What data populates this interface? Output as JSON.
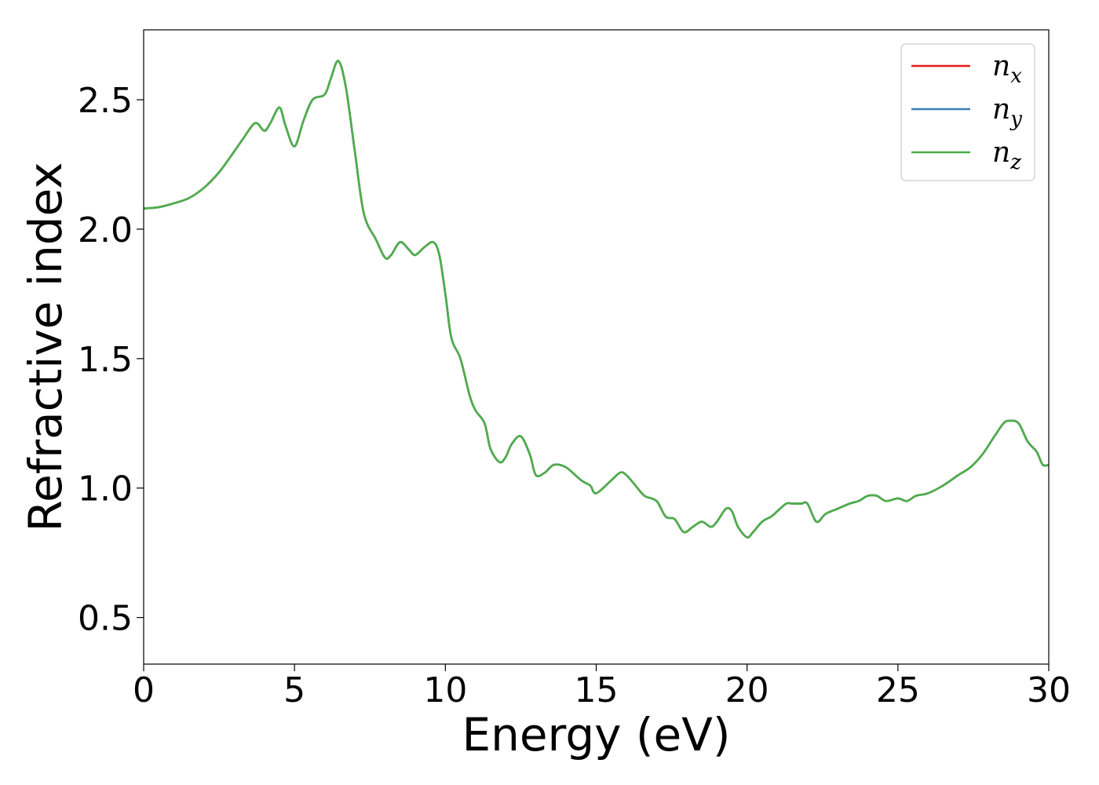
{
  "chart_data": {
    "type": "line",
    "title": "",
    "xlabel": "Energy (eV)",
    "ylabel": "Refractive index",
    "xlim": [
      0,
      30
    ],
    "ylim": [
      0.32,
      2.77
    ],
    "xticks": [
      0,
      5,
      10,
      15,
      20,
      25,
      30
    ],
    "xtick_labels": [
      "0",
      "5",
      "10",
      "15",
      "20",
      "25",
      "30"
    ],
    "yticks": [
      0.5,
      1.0,
      1.5,
      2.0,
      2.5
    ],
    "ytick_labels": [
      "0.5",
      "1.0",
      "1.5",
      "2.0",
      "2.5"
    ],
    "grid": false,
    "legend_position": "top-right",
    "x": [
      0,
      0.5,
      1,
      1.5,
      2,
      2.5,
      3,
      3.3,
      3.7,
      4.0,
      4.2,
      4.5,
      4.7,
      5.0,
      5.3,
      5.6,
      6.0,
      6.2,
      6.45,
      6.7,
      7.0,
      7.3,
      7.7,
      8.0,
      8.2,
      8.5,
      8.8,
      9.0,
      9.3,
      9.6,
      9.8,
      10.0,
      10.2,
      10.5,
      10.8,
      11.0,
      11.3,
      11.5,
      11.8,
      12.0,
      12.2,
      12.5,
      12.8,
      13.0,
      13.3,
      13.6,
      14.0,
      14.5,
      14.8,
      15.0,
      15.5,
      15.8,
      16.0,
      16.3,
      16.6,
      17.0,
      17.3,
      17.6,
      17.9,
      18.2,
      18.5,
      18.8,
      19.0,
      19.3,
      19.5,
      19.7,
      20.0,
      20.2,
      20.5,
      20.8,
      21.0,
      21.3,
      21.5,
      21.8,
      22.0,
      22.3,
      22.6,
      23.0,
      23.4,
      23.7,
      24.0,
      24.3,
      24.6,
      25.0,
      25.3,
      25.6,
      26.0,
      26.5,
      27.0,
      27.4,
      27.8,
      28.2,
      28.5,
      28.7,
      29.0,
      29.3,
      29.6,
      29.8,
      30.0
    ],
    "series": [
      {
        "name": "n_x",
        "label_base": "n",
        "label_sub": "x",
        "color": "#e41a1c"
      },
      {
        "name": "n_y",
        "label_base": "n",
        "label_sub": "y",
        "color": "#377eb8"
      },
      {
        "name": "n_z",
        "label_base": "n",
        "label_sub": "z",
        "color": "#4daf4a"
      }
    ],
    "values": [
      2.08,
      2.085,
      2.1,
      2.12,
      2.16,
      2.22,
      2.3,
      2.35,
      2.41,
      2.38,
      2.41,
      2.47,
      2.4,
      2.32,
      2.42,
      2.5,
      2.52,
      2.58,
      2.65,
      2.55,
      2.3,
      2.06,
      1.96,
      1.89,
      1.9,
      1.95,
      1.92,
      1.9,
      1.93,
      1.95,
      1.9,
      1.75,
      1.58,
      1.5,
      1.36,
      1.3,
      1.25,
      1.15,
      1.1,
      1.12,
      1.17,
      1.2,
      1.13,
      1.05,
      1.06,
      1.09,
      1.08,
      1.03,
      1.01,
      0.98,
      1.03,
      1.06,
      1.05,
      1.01,
      0.97,
      0.95,
      0.89,
      0.88,
      0.83,
      0.85,
      0.87,
      0.85,
      0.87,
      0.92,
      0.91,
      0.85,
      0.81,
      0.83,
      0.87,
      0.89,
      0.91,
      0.94,
      0.94,
      0.94,
      0.94,
      0.87,
      0.9,
      0.92,
      0.94,
      0.95,
      0.97,
      0.97,
      0.95,
      0.96,
      0.95,
      0.97,
      0.98,
      1.01,
      1.05,
      1.08,
      1.13,
      1.2,
      1.25,
      1.26,
      1.25,
      1.18,
      1.14,
      1.09,
      1.09
    ]
  }
}
